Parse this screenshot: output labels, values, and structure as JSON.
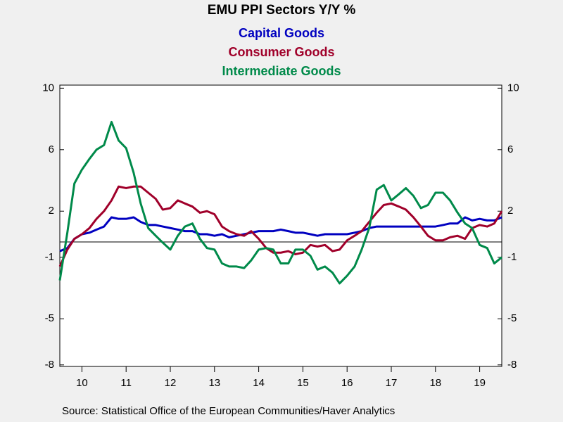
{
  "chart_data": {
    "type": "line",
    "title": "EMU PPI Sectors Y/Y %",
    "source": "Source:  Statistical Office of the European Communities/Haver Analytics",
    "x": [
      2010,
      2010.17,
      2010.33,
      2010.5,
      2010.67,
      2010.83,
      2011,
      2011.17,
      2011.33,
      2011.5,
      2011.67,
      2011.83,
      2012,
      2012.17,
      2012.33,
      2012.5,
      2012.67,
      2012.83,
      2013,
      2013.17,
      2013.33,
      2013.5,
      2013.67,
      2013.83,
      2014,
      2014.17,
      2014.33,
      2014.5,
      2014.67,
      2014.83,
      2015,
      2015.17,
      2015.33,
      2015.5,
      2015.67,
      2015.83,
      2016,
      2016.17,
      2016.33,
      2016.5,
      2016.67,
      2016.83,
      2017,
      2017.17,
      2017.33,
      2017.5,
      2017.67,
      2017.83,
      2018,
      2018.17,
      2018.33,
      2018.5,
      2018.67,
      2018.83,
      2019,
      2019.17,
      2019.33,
      2019.5,
      2019.67,
      2019.83,
      2020
    ],
    "series": [
      {
        "name": "Capital Goods",
        "color": "#0000c0",
        "values": [
          -0.6,
          -0.4,
          0.2,
          0.5,
          0.6,
          0.8,
          1.0,
          1.6,
          1.5,
          1.5,
          1.6,
          1.3,
          1.1,
          1.1,
          1.0,
          0.9,
          0.8,
          0.7,
          0.7,
          0.5,
          0.5,
          0.4,
          0.5,
          0.3,
          0.4,
          0.5,
          0.6,
          0.7,
          0.7,
          0.7,
          0.8,
          0.7,
          0.6,
          0.6,
          0.5,
          0.4,
          0.5,
          0.5,
          0.5,
          0.5,
          0.6,
          0.7,
          0.9,
          1.0,
          1.0,
          1.0,
          1.0,
          1.0,
          1.0,
          1.0,
          1.0,
          1.0,
          1.1,
          1.2,
          1.2,
          1.6,
          1.4,
          1.5,
          1.4,
          1.4,
          1.6
        ]
      },
      {
        "name": "Consumer Goods",
        "color": "#a0002a",
        "values": [
          -1.6,
          -0.5,
          0.2,
          0.5,
          0.9,
          1.5,
          2.0,
          2.7,
          3.6,
          3.5,
          3.6,
          3.6,
          3.2,
          2.8,
          2.1,
          2.2,
          2.7,
          2.5,
          2.3,
          1.9,
          2.0,
          1.8,
          1.0,
          0.7,
          0.5,
          0.4,
          0.7,
          0.2,
          -0.4,
          -0.7,
          -0.7,
          -0.6,
          -0.8,
          -0.7,
          -0.2,
          -0.3,
          -0.2,
          -0.6,
          -0.5,
          0.1,
          0.4,
          0.7,
          1.3,
          1.9,
          2.4,
          2.5,
          2.3,
          2.1,
          1.6,
          1.0,
          0.4,
          0.1,
          0.1,
          0.3,
          0.4,
          0.2,
          0.9,
          1.1,
          1.0,
          1.2,
          2.0
        ]
      },
      {
        "name": "Intermediate Goods",
        "color": "#008a4a",
        "values": [
          -2.5,
          0.6,
          3.8,
          4.7,
          5.4,
          6.0,
          6.3,
          7.8,
          6.6,
          6.1,
          4.5,
          2.5,
          0.9,
          0.4,
          -0.05,
          -0.5,
          0.4,
          1.0,
          1.2,
          0.2,
          -0.4,
          -0.5,
          -1.4,
          -1.6,
          -1.6,
          -1.7,
          -1.2,
          -0.5,
          -0.4,
          -0.5,
          -1.4,
          -1.4,
          -0.5,
          -0.5,
          -0.9,
          -1.8,
          -1.6,
          -2.0,
          -2.7,
          -2.2,
          -1.6,
          -0.5,
          0.9,
          3.4,
          3.7,
          2.7,
          3.1,
          3.5,
          3.0,
          2.2,
          2.4,
          3.2,
          3.2,
          2.7,
          1.9,
          1.2,
          0.9,
          -0.2,
          -0.4,
          -1.4,
          -1.0
        ]
      }
    ],
    "xlim": [
      2010,
      2020
    ],
    "xticks": [
      {
        "value": 2010.5,
        "label": "10"
      },
      {
        "value": 2011.5,
        "label": "11"
      },
      {
        "value": 2012.5,
        "label": "12"
      },
      {
        "value": 2013.5,
        "label": "13"
      },
      {
        "value": 2014.5,
        "label": "14"
      },
      {
        "value": 2015.5,
        "label": "15"
      },
      {
        "value": 2016.5,
        "label": "16"
      },
      {
        "value": 2017.5,
        "label": "17"
      },
      {
        "value": 2018.5,
        "label": "18"
      },
      {
        "value": 2019.5,
        "label": "19"
      }
    ],
    "ylim": [
      -8.1,
      10.2
    ],
    "yticks": [
      -8,
      -5,
      -1,
      2,
      6,
      10
    ],
    "grid": false
  }
}
